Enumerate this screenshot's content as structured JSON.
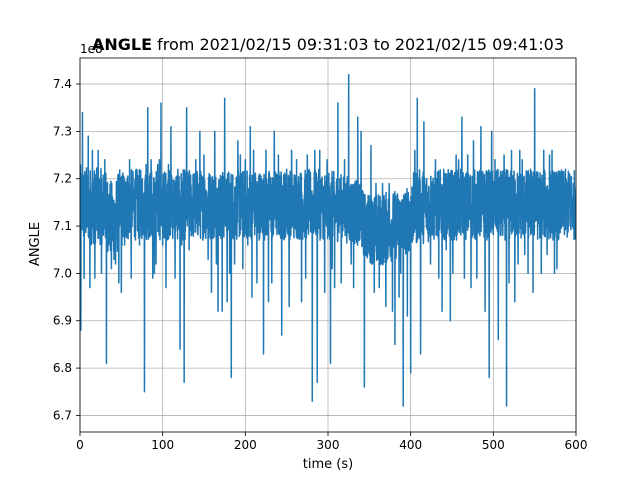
{
  "chart_data": {
    "type": "line",
    "title_bold": "ANGLE",
    "title_rest": " from 2021/02/15 09:31:03 to 2021/02/15 09:41:03",
    "xlabel": "time (s)",
    "ylabel": "ANGLE",
    "offset_text": "1e8",
    "xlim": [
      0,
      600
    ],
    "ylim": [
      6.665,
      7.455
    ],
    "xticks": [
      0,
      100,
      200,
      300,
      400,
      500,
      600
    ],
    "xtick_labels": [
      "0",
      "100",
      "200",
      "300",
      "400",
      "500",
      "600"
    ],
    "yticks": [
      6.7,
      6.8,
      6.9,
      7.0,
      7.1,
      7.2,
      7.3,
      7.4
    ],
    "ytick_labels": [
      "6.7",
      "6.8",
      "6.9",
      "7.0",
      "7.1",
      "7.2",
      "7.3",
      "7.4"
    ],
    "grid": true,
    "series": [
      {
        "color": "#1f77b4",
        "band": [
          [
            0,
            7.06,
            7.23
          ],
          [
            30,
            7.06,
            7.22
          ],
          [
            40,
            7.02,
            7.19
          ],
          [
            48,
            7.05,
            7.22
          ],
          [
            60,
            7.07,
            7.22
          ],
          [
            100,
            7.07,
            7.22
          ],
          [
            200,
            7.07,
            7.22
          ],
          [
            300,
            7.07,
            7.22
          ],
          [
            335,
            7.06,
            7.2
          ],
          [
            345,
            7.03,
            7.17
          ],
          [
            360,
            7.01,
            7.17
          ],
          [
            395,
            7.04,
            7.18
          ],
          [
            405,
            7.06,
            7.22
          ],
          [
            440,
            7.07,
            7.22
          ],
          [
            500,
            7.07,
            7.22
          ],
          [
            600,
            7.07,
            7.22
          ]
        ],
        "spikes": [
          [
            1,
            6.88
          ],
          [
            3,
            7.34
          ],
          [
            5,
            6.99
          ],
          [
            10,
            7.29
          ],
          [
            12,
            6.97
          ],
          [
            15,
            7.26
          ],
          [
            18,
            6.99
          ],
          [
            22,
            7.26
          ],
          [
            26,
            7.0
          ],
          [
            30,
            7.24
          ],
          [
            32,
            6.81
          ],
          [
            35,
            7.15
          ],
          [
            38,
            7.01
          ],
          [
            43,
            7.02
          ],
          [
            47,
            6.98
          ],
          [
            50,
            6.96
          ],
          [
            54,
            7.06
          ],
          [
            57,
            7.2
          ],
          [
            60,
            7.24
          ],
          [
            62,
            6.99
          ],
          [
            68,
            7.22
          ],
          [
            72,
            7.06
          ],
          [
            78,
            6.75
          ],
          [
            80,
            7.23
          ],
          [
            82,
            7.35
          ],
          [
            86,
            7.24
          ],
          [
            88,
            6.99
          ],
          [
            90,
            7.0
          ],
          [
            92,
            7.02
          ],
          [
            94,
            7.23
          ],
          [
            96,
            7.24
          ],
          [
            98,
            7.36
          ],
          [
            100,
            7.06
          ],
          [
            104,
            6.97
          ],
          [
            107,
            7.23
          ],
          [
            110,
            7.31
          ],
          [
            115,
            6.99
          ],
          [
            121,
            6.84
          ],
          [
            123,
            7.06
          ],
          [
            126,
            6.77
          ],
          [
            129,
            7.35
          ],
          [
            132,
            7.05
          ],
          [
            140,
            7.24
          ],
          [
            145,
            7.3
          ],
          [
            150,
            7.25
          ],
          [
            155,
            7.03
          ],
          [
            159,
            6.96
          ],
          [
            163,
            7.3
          ],
          [
            165,
            7.02
          ],
          [
            167,
            6.92
          ],
          [
            172,
            6.92
          ],
          [
            175,
            7.37
          ],
          [
            178,
            6.94
          ],
          [
            181,
            7.0
          ],
          [
            183,
            6.78
          ],
          [
            187,
            7.02
          ],
          [
            191,
            7.28
          ],
          [
            194,
            7.25
          ],
          [
            197,
            7.01
          ],
          [
            200,
            7.24
          ],
          [
            203,
            7.06
          ],
          [
            206,
            7.31
          ],
          [
            208,
            6.95
          ],
          [
            210,
            7.26
          ],
          [
            214,
            6.98
          ],
          [
            222,
            6.83
          ],
          [
            225,
            7.26
          ],
          [
            228,
            6.94
          ],
          [
            232,
            6.98
          ],
          [
            235,
            7.3
          ],
          [
            240,
            7.25
          ],
          [
            244,
            6.87
          ],
          [
            250,
            7.22
          ],
          [
            253,
            6.93
          ],
          [
            256,
            7.26
          ],
          [
            262,
            7.24
          ],
          [
            268,
            6.94
          ],
          [
            273,
            6.99
          ],
          [
            275,
            7.25
          ],
          [
            281,
            6.73
          ],
          [
            284,
            7.26
          ],
          [
            287,
            6.77
          ],
          [
            290,
            7.26
          ],
          [
            296,
            6.96
          ],
          [
            299,
            7.24
          ],
          [
            303,
            6.81
          ],
          [
            305,
            7.01
          ],
          [
            308,
            6.97
          ],
          [
            312,
            7.36
          ],
          [
            316,
            6.98
          ],
          [
            320,
            7.24
          ],
          [
            325,
            7.42
          ],
          [
            328,
            7.02
          ],
          [
            331,
            6.97
          ],
          [
            336,
            7.33
          ],
          [
            340,
            7.3
          ],
          [
            344,
            6.76
          ],
          [
            348,
            7.05
          ],
          [
            352,
            7.27
          ],
          [
            356,
            6.96
          ],
          [
            358,
            7.19
          ],
          [
            362,
            6.97
          ],
          [
            366,
            7.19
          ],
          [
            370,
            6.93
          ],
          [
            374,
            7.19
          ],
          [
            378,
            6.92
          ],
          [
            381,
            6.85
          ],
          [
            386,
            6.95
          ],
          [
            388,
            7.0
          ],
          [
            391,
            6.72
          ],
          [
            396,
            6.91
          ],
          [
            400,
            6.79
          ],
          [
            405,
            7.26
          ],
          [
            408,
            7.37
          ],
          [
            412,
            6.83
          ],
          [
            416,
            7.32
          ],
          [
            421,
            7.17
          ],
          [
            424,
            7.02
          ],
          [
            430,
            7.24
          ],
          [
            434,
            6.99
          ],
          [
            438,
            6.92
          ],
          [
            443,
            7.05
          ],
          [
            448,
            6.9
          ],
          [
            451,
            7.0
          ],
          [
            455,
            7.25
          ],
          [
            458,
            7.24
          ],
          [
            462,
            7.33
          ],
          [
            465,
            6.99
          ],
          [
            469,
            7.25
          ],
          [
            473,
            6.97
          ],
          [
            476,
            7.28
          ],
          [
            480,
            6.99
          ],
          [
            485,
            7.31
          ],
          [
            490,
            6.92
          ],
          [
            495,
            6.78
          ],
          [
            498,
            7.3
          ],
          [
            502,
            7.24
          ],
          [
            506,
            6.86
          ],
          [
            509,
            7.08
          ],
          [
            513,
            7.25
          ],
          [
            516,
            6.72
          ],
          [
            519,
            6.98
          ],
          [
            522,
            7.26
          ],
          [
            526,
            6.94
          ],
          [
            530,
            7.02
          ],
          [
            532,
            7.26
          ],
          [
            535,
            7.24
          ],
          [
            538,
            7.04
          ],
          [
            542,
            7.0
          ],
          [
            545,
            7.22
          ],
          [
            548,
            6.96
          ],
          [
            550,
            7.39
          ],
          [
            553,
            7.21
          ],
          [
            558,
            7.0
          ],
          [
            561,
            7.26
          ],
          [
            565,
            7.04
          ],
          [
            568,
            7.25
          ],
          [
            571,
            7.26
          ],
          [
            574,
            7.0
          ],
          [
            577,
            7.01
          ],
          [
            580,
            7.15
          ],
          [
            584,
            7.1
          ],
          [
            590,
            7.18
          ],
          [
            596,
            7.16
          ],
          [
            600,
            7.18
          ]
        ]
      }
    ]
  }
}
